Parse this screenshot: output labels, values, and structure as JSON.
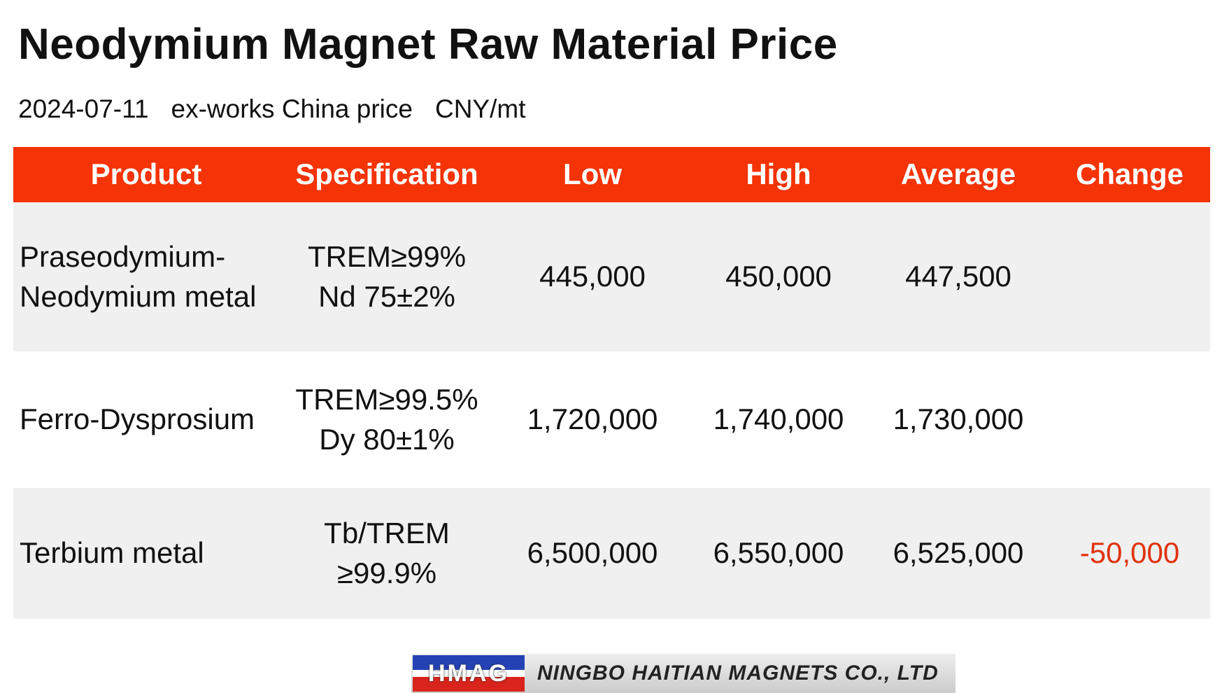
{
  "title": "Neodymium Magnet Raw Material Price",
  "subtitle": {
    "date": "2024-07-11",
    "basis": "ex-works China price",
    "unit": "CNY/mt"
  },
  "table": {
    "headers": [
      "Product",
      "Specification",
      "Low",
      "High",
      "Average",
      "Change"
    ],
    "rows": [
      {
        "product": [
          "Praseodymium-",
          "Neodymium metal"
        ],
        "specification": [
          "TREM≥99%",
          "Nd 75±2%"
        ],
        "low": "445,000",
        "high": "450,000",
        "average": "447,500"
      },
      {
        "product": [
          "Ferro-Dysprosium"
        ],
        "specification": [
          "TREM≥99.5%",
          "Dy 80±1%"
        ],
        "low": "1,720,000",
        "high": "1,740,000",
        "average": "1,730,000"
      },
      {
        "product": [
          "Terbium metal"
        ],
        "specification": [
          "Tb/TREM",
          "≥99.9%"
        ],
        "low": "6,500,000",
        "high": "6,550,000",
        "average": "6,525,000",
        "change": "-50,000"
      }
    ]
  },
  "footer": {
    "logo": "HMAG",
    "company": "NINGBO HAITIAN MAGNETS CO., LTD"
  }
}
